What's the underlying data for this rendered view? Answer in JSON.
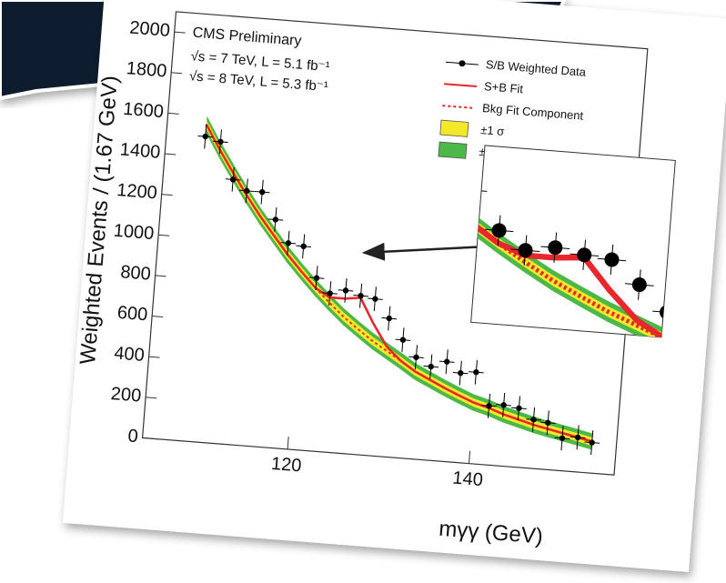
{
  "chart_data": {
    "type": "scatter",
    "annotations": [
      "CMS Preliminary",
      "√s = 7 TeV, L = 5.1 fb⁻¹",
      "√s = 8 TeV, L = 5.3 fb⁻¹"
    ],
    "x_label": "mγγ (GeV)",
    "y_label": "Weighted Events / (1.67 GeV)",
    "x": [
      108.3,
      110,
      111.7,
      113.3,
      115,
      116.7,
      118.3,
      120,
      121.7,
      123.3,
      125,
      126.7,
      128.3,
      130,
      131.7,
      133.3,
      135,
      136.7,
      138.3,
      140,
      141.7,
      143.3,
      145,
      146.7,
      148.3,
      150,
      151.7,
      153.3
    ],
    "xerr": 0.83,
    "series": [
      {
        "name": "S/B Weighted Data",
        "color": "#000000",
        "style": "points",
        "yerr": 60,
        "values": [
          1500,
          1480,
          1300,
          1250,
          1250,
          1120,
          1010,
          1000,
          850,
          780,
          800,
          780,
          770,
          680,
          580,
          500,
          460,
          490,
          440,
          450,
          290,
          300,
          290,
          240,
          230,
          160,
          170,
          150
        ]
      },
      {
        "name": "S+B Fit",
        "color": "#e8262b",
        "style": "line",
        "values": [
          1560,
          1440,
          1330,
          1230,
          1130,
          1040,
          955,
          875,
          800,
          760,
          760,
          770,
          650,
          540,
          475,
          430,
          395,
          360,
          330,
          300,
          280,
          255,
          235,
          215,
          200,
          185,
          170,
          155
        ]
      },
      {
        "name": "Bkg Fit Component",
        "color": "#e8262b",
        "style": "dashed",
        "values": [
          1560,
          1440,
          1330,
          1230,
          1130,
          1040,
          955,
          875,
          800,
          735,
          670,
          615,
          565,
          520,
          475,
          430,
          395,
          360,
          330,
          300,
          280,
          255,
          235,
          215,
          200,
          185,
          170,
          155
        ]
      },
      {
        "name": "±1 σ",
        "color": "#f3e92a",
        "style": "band",
        "halfwidth": 20
      },
      {
        "name": "±2 σ",
        "color": "#4cb848",
        "style": "band",
        "halfwidth": 40
      }
    ],
    "xlim": [
      104,
      156
    ],
    "ylim": [
      0,
      2100
    ],
    "xticks": [
      120,
      140
    ],
    "yticks": [
      0,
      200,
      400,
      600,
      800,
      1000,
      1200,
      1400,
      1600,
      1800,
      2000
    ],
    "inset": {
      "xlim": [
        120.5,
        131.5
      ],
      "ylim": [
        480,
        1180
      ]
    }
  }
}
